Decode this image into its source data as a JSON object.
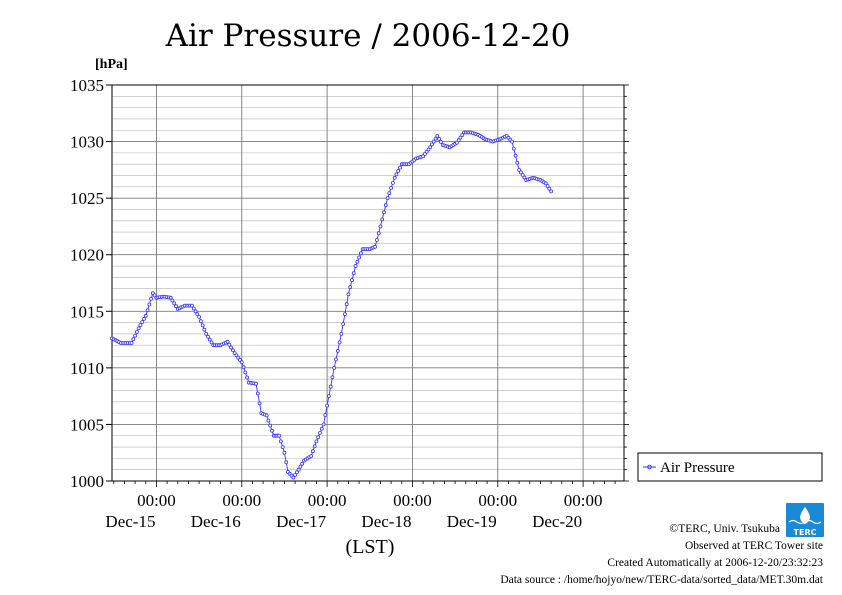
{
  "chart_data": {
    "type": "line",
    "title": "Air Pressure / 2006-12-20",
    "ylabel": "[hPa]",
    "xlabel": "(LST)",
    "ylim": [
      1000,
      1035
    ],
    "yticks": [
      1000,
      1005,
      1010,
      1015,
      1020,
      1025,
      1030,
      1035
    ],
    "xlim_hours": [
      -12.5,
      131.5
    ],
    "xticks": [
      {
        "hour": 0,
        "time": "00:00",
        "date": "Dec-15"
      },
      {
        "hour": 24,
        "time": "00:00",
        "date": "Dec-16"
      },
      {
        "hour": 48,
        "time": "00:00",
        "date": "Dec-17"
      },
      {
        "hour": 72,
        "time": "00:00",
        "date": "Dec-18"
      },
      {
        "hour": 96,
        "time": "00:00",
        "date": "Dec-19"
      },
      {
        "hour": 120,
        "time": "00:00",
        "date": "Dec-20"
      }
    ],
    "grid": true,
    "legend_position": "right",
    "series": [
      {
        "name": "Air Pressure",
        "color": "#3333ff",
        "points": [
          [
            -12.5,
            1012.6
          ],
          [
            -10,
            1012.2
          ],
          [
            -7,
            1012.2
          ],
          [
            -5,
            1013.5
          ],
          [
            -3,
            1014.6
          ],
          [
            -1,
            1016.6
          ],
          [
            0,
            1016.2
          ],
          [
            2,
            1016.3
          ],
          [
            4,
            1016.2
          ],
          [
            6,
            1015.2
          ],
          [
            8,
            1015.5
          ],
          [
            10,
            1015.5
          ],
          [
            12,
            1014.5
          ],
          [
            14,
            1013.0
          ],
          [
            16,
            1012.0
          ],
          [
            18,
            1012.0
          ],
          [
            20,
            1012.3
          ],
          [
            22,
            1011.3
          ],
          [
            24,
            1010.5
          ],
          [
            26,
            1008.7
          ],
          [
            28,
            1008.6
          ],
          [
            29.5,
            1006.0
          ],
          [
            31,
            1005.8
          ],
          [
            33,
            1004.0
          ],
          [
            34.5,
            1004.0
          ],
          [
            36,
            1002.5
          ],
          [
            37,
            1000.8
          ],
          [
            38.5,
            1000.3
          ],
          [
            40,
            1001.0
          ],
          [
            41.5,
            1001.8
          ],
          [
            43.5,
            1002.2
          ],
          [
            45,
            1003.5
          ],
          [
            47,
            1005.0
          ],
          [
            48.5,
            1007.5
          ],
          [
            50,
            1010.0
          ],
          [
            52,
            1013.0
          ],
          [
            54,
            1016.5
          ],
          [
            56,
            1019.0
          ],
          [
            58,
            1020.5
          ],
          [
            60,
            1020.5
          ],
          [
            61.5,
            1020.7
          ],
          [
            63,
            1022.5
          ],
          [
            65,
            1025.0
          ],
          [
            67,
            1026.8
          ],
          [
            69,
            1028.0
          ],
          [
            71,
            1028.0
          ],
          [
            73,
            1028.5
          ],
          [
            75,
            1028.7
          ],
          [
            77,
            1029.5
          ],
          [
            79,
            1030.5
          ],
          [
            80.5,
            1029.7
          ],
          [
            82.5,
            1029.5
          ],
          [
            84.5,
            1029.9
          ],
          [
            86.5,
            1030.8
          ],
          [
            88.5,
            1030.8
          ],
          [
            90.5,
            1030.6
          ],
          [
            92.5,
            1030.2
          ],
          [
            94.5,
            1030.0
          ],
          [
            96.5,
            1030.2
          ],
          [
            98.5,
            1030.5
          ],
          [
            100,
            1030.0
          ],
          [
            102,
            1027.5
          ],
          [
            104,
            1026.6
          ],
          [
            106,
            1026.8
          ],
          [
            108,
            1026.6
          ],
          [
            109.5,
            1026.3
          ],
          [
            111,
            1025.6
          ]
        ]
      }
    ]
  },
  "credits": {
    "copyright": "©TERC, Univ. Tsukuba",
    "observed": "Observed at TERC Tower site",
    "created": "Created Automatically at 2006-12-20/23:32:23",
    "source": "Data source : /home/hojyo/new/TERC-data/sorted_data/MET.30m.dat"
  },
  "logo": {
    "text": "TERC",
    "color": "#1a8ad6"
  }
}
